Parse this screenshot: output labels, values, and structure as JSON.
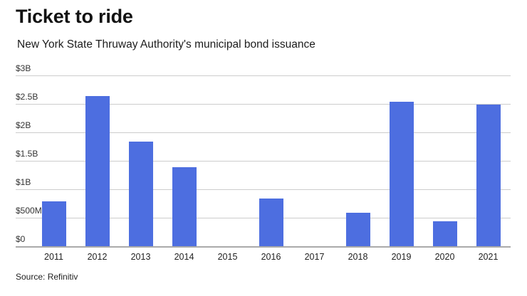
{
  "header": {
    "title": "Ticket to ride",
    "subtitle": "New York State Thruway Authority's municipal bond issuance"
  },
  "footer": {
    "source": "Source: Refinitiv"
  },
  "chart_data": {
    "type": "bar",
    "title": "Ticket to ride",
    "subtitle": "New York State Thruway Authority's municipal bond issuance",
    "source": "Source: Refinitiv",
    "categories": [
      "2011",
      "2012",
      "2013",
      "2014",
      "2015",
      "2016",
      "2017",
      "2018",
      "2019",
      "2020",
      "2021"
    ],
    "values": [
      0.8,
      2.65,
      1.85,
      1.4,
      0,
      0.85,
      0,
      0.6,
      2.55,
      0.45,
      2.5
    ],
    "unit": "billions of US dollars",
    "xlabel": "",
    "ylabel": "",
    "ylim": [
      0,
      3
    ],
    "yticks": [
      {
        "value": 0,
        "label": "$0"
      },
      {
        "value": 0.5,
        "label": "$500M"
      },
      {
        "value": 1,
        "label": "$1B"
      },
      {
        "value": 1.5,
        "label": "$1.5B"
      },
      {
        "value": 2,
        "label": "$2B"
      },
      {
        "value": 2.5,
        "label": "$2.5B"
      },
      {
        "value": 3,
        "label": "$3B"
      }
    ],
    "grid": "horizontal",
    "legend": "none",
    "colors": {
      "bar": "#4d6ee0",
      "gridline": "#cccccc",
      "axis_line": "#aaaaaa",
      "text": "#333333"
    }
  }
}
